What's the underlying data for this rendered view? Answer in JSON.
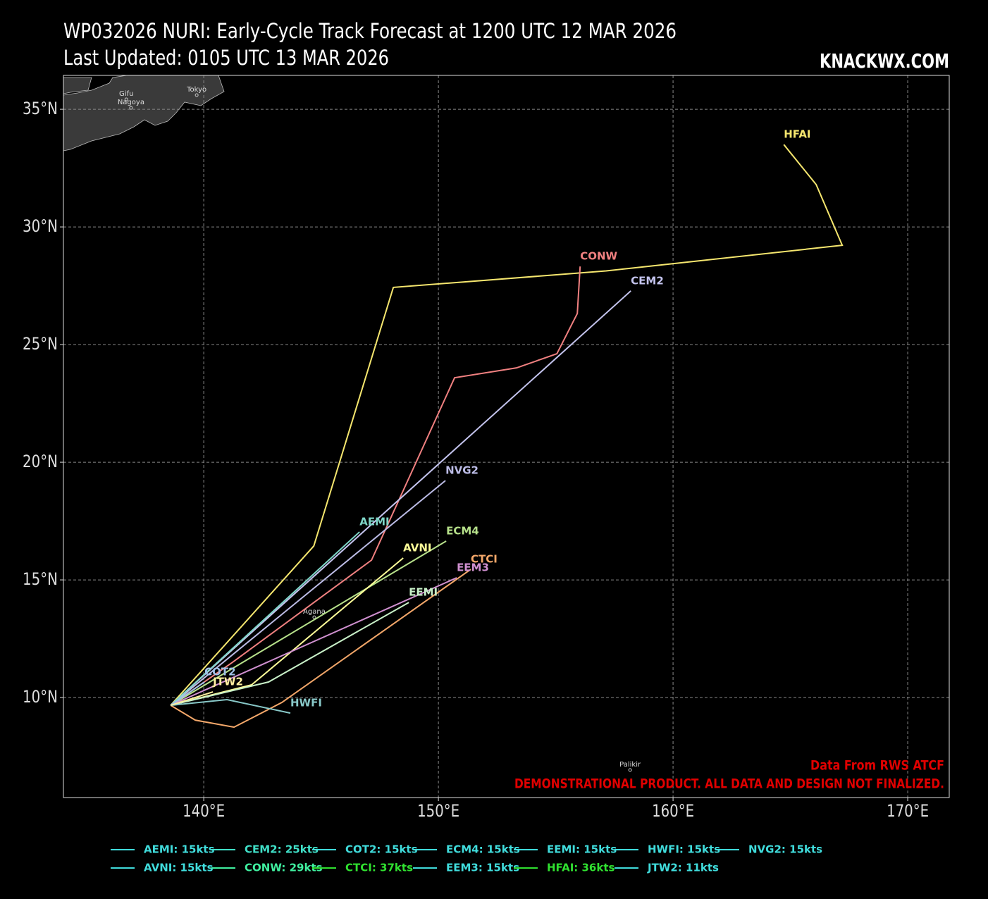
{
  "chart_data": {
    "type": "track",
    "title": "WP032026 NURI: Early-Cycle Track Forecast at 1200 UTC 12 MAR 2026",
    "subtitle": "Last Updated: 0105 UTC 13 MAR 2026",
    "brand": "KNACKWX.COM",
    "source": "Data From RWS ATCF",
    "disclaimer": "DEMONSTRATIONAL PRODUCT. ALL DATA AND DESIGN NOT FINALIZED.",
    "xlim": [
      134.02,
      171.77
    ],
    "ylim": [
      5.75,
      36.44
    ],
    "xticks": [
      {
        "value": 140,
        "label": "140°E"
      },
      {
        "value": 150,
        "label": "150°E"
      },
      {
        "value": 160,
        "label": "160°E"
      },
      {
        "value": 170,
        "label": "170°E"
      }
    ],
    "yticks": [
      {
        "value": 10,
        "label": "10°N"
      },
      {
        "value": 15,
        "label": "15°N"
      },
      {
        "value": 20,
        "label": "20°N"
      },
      {
        "value": 25,
        "label": "25°N"
      },
      {
        "value": 30,
        "label": "30°N"
      },
      {
        "value": 35,
        "label": "35°N"
      }
    ],
    "grid": true,
    "series": [
      {
        "name": "HFAI",
        "color": "#f5e66e",
        "x": [
          138.59,
          144.69,
          148.08,
          157.15,
          167.21,
          166.1,
          164.72
        ],
        "values": [
          9.67,
          16.44,
          27.43,
          28.13,
          29.22,
          31.8,
          33.5
        ]
      },
      {
        "name": "CONW",
        "color": "#f08080",
        "x": [
          138.59,
          141.23,
          147.15,
          150.69,
          153.33,
          155.05,
          155.92,
          156.04
        ],
        "values": [
          9.67,
          11.5,
          15.84,
          23.59,
          24.01,
          24.61,
          26.32,
          28.32
        ]
      },
      {
        "name": "CEM2",
        "color": "#c4c4ee",
        "x": [
          138.59,
          158.2
        ],
        "values": [
          9.67,
          27.28
        ]
      },
      {
        "name": "NVG2",
        "color": "#bcbce6",
        "x": [
          138.59,
          150.3
        ],
        "values": [
          9.67,
          19.22
        ]
      },
      {
        "name": "AEMI",
        "color": "#7fd6c8",
        "x": [
          138.59,
          146.64
        ],
        "values": [
          9.67,
          17.04
        ]
      },
      {
        "name": "ECM4",
        "color": "#b6e08a",
        "x": [
          138.59,
          150.33
        ],
        "values": [
          9.67,
          16.65
        ]
      },
      {
        "name": "AVNI",
        "color": "#ffff99",
        "x": [
          138.59,
          142.04,
          148.5
        ],
        "values": [
          9.67,
          10.54,
          15.93
        ]
      },
      {
        "name": "CTCI",
        "color": "#f5a86a",
        "x": [
          138.59,
          139.64,
          141.29,
          143.33,
          151.38
        ],
        "values": [
          9.67,
          9.04,
          8.74,
          9.79,
          15.45
        ]
      },
      {
        "name": "EEM3",
        "color": "#d090d0",
        "x": [
          138.59,
          150.78
        ],
        "values": [
          9.67,
          15.09
        ]
      },
      {
        "name": "EEMI",
        "color": "#c8f0c8",
        "x": [
          138.59,
          142.76,
          148.74
        ],
        "values": [
          9.67,
          10.66,
          14.04
        ]
      },
      {
        "name": "HWFI",
        "color": "#88c8c8",
        "x": [
          138.59,
          140.99,
          143.69
        ],
        "values": [
          9.67,
          9.91,
          9.34
        ]
      },
      {
        "name": "COT2",
        "color": "#a0c0e8",
        "x": [
          138.59,
          140.03
        ],
        "values": [
          9.67,
          10.66
        ]
      },
      {
        "name": "JTW2",
        "color": "#fff0a0",
        "x": [
          138.59,
          140.39
        ],
        "values": [
          9.67,
          10.24
        ]
      }
    ],
    "legend": [
      {
        "label": "AEMI: 15kts",
        "color": "#40dcdc"
      },
      {
        "label": "AVNI: 15kts",
        "color": "#40dcdc"
      },
      {
        "label": "CEM2: 25kts",
        "color": "#40e0c8"
      },
      {
        "label": "CONW: 29kts",
        "color": "#40f0a0"
      },
      {
        "label": "COT2: 15kts",
        "color": "#40dcdc"
      },
      {
        "label": "CTCI: 37kts",
        "color": "#30e030"
      },
      {
        "label": "ECM4: 15kts",
        "color": "#40dcdc"
      },
      {
        "label": "EEM3: 15kts",
        "color": "#40dcdc"
      },
      {
        "label": "EEMI: 15kts",
        "color": "#40dcdc"
      },
      {
        "label": "HFAI: 36kts",
        "color": "#30e030"
      },
      {
        "label": "HWFI: 15kts",
        "color": "#40dcdc"
      },
      {
        "label": "JTW2: 11kts",
        "color": "#40dcdc"
      },
      {
        "label": "NVG2: 15kts",
        "color": "#40dcdc"
      }
    ],
    "places": [
      {
        "name": "Tokyo",
        "lon": 139.7,
        "lat": 35.84
      },
      {
        "name": "Gifu",
        "lon": 136.7,
        "lat": 35.66
      },
      {
        "name": "Nagoya",
        "lon": 136.9,
        "lat": 35.3
      },
      {
        "name": "Agana",
        "lon": 144.71,
        "lat": 13.65
      },
      {
        "name": "Palikir",
        "lon": 158.17,
        "lat": 7.16
      }
    ]
  }
}
